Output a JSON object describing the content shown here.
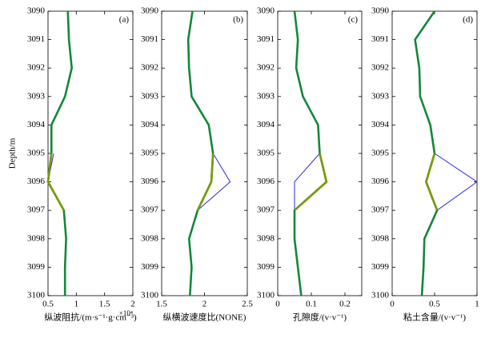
{
  "chart_data": [
    {
      "type": "line",
      "title": "(a)",
      "xlabel": "纵波阻抗/(m·s⁻¹·g·cm⁻³)",
      "x_exponent_label": "×10⁴",
      "ylabel": "Depth/m",
      "y": [
        3090,
        3091,
        3092,
        3093,
        3094,
        3095,
        3096,
        3097,
        3098,
        3099,
        3100
      ],
      "series": [
        {
          "color": "#13873a",
          "values": [
            0.85,
            0.87,
            0.92,
            0.8,
            0.56,
            0.56,
            0.5,
            0.78,
            0.82,
            0.8,
            0.8
          ]
        },
        {
          "color": "#2a2ad8",
          "values": [
            null,
            null,
            null,
            null,
            null,
            0.6,
            0.5,
            0.78,
            null,
            null,
            null
          ]
        },
        {
          "color": "#7a9a0c",
          "values": [
            null,
            null,
            null,
            null,
            null,
            0.56,
            0.5,
            0.78,
            null,
            null,
            null
          ]
        }
      ],
      "xlim": [
        0.5,
        2
      ],
      "xticks": [
        0.5,
        1,
        1.5,
        2
      ],
      "ylim": [
        3090,
        3100
      ],
      "yticks": [
        3090,
        3091,
        3092,
        3093,
        3094,
        3095,
        3096,
        3097,
        3098,
        3099,
        3100
      ],
      "y_inverted": true
    },
    {
      "type": "line",
      "title": "(b)",
      "xlabel": "纵横波速度比(NONE)",
      "y": [
        3090,
        3091,
        3092,
        3093,
        3094,
        3095,
        3096,
        3097,
        3098,
        3099,
        3100
      ],
      "series": [
        {
          "color": "#13873a",
          "values": [
            1.86,
            1.81,
            1.82,
            1.85,
            2.05,
            2.1,
            2.08,
            1.92,
            1.82,
            1.85,
            1.83
          ]
        },
        {
          "color": "#2a2ad8",
          "values": [
            null,
            null,
            null,
            null,
            null,
            2.1,
            2.3,
            1.92,
            null,
            null,
            null
          ]
        },
        {
          "color": "#7a9a0c",
          "values": [
            null,
            null,
            null,
            null,
            null,
            2.1,
            2.08,
            1.92,
            null,
            null,
            null
          ]
        }
      ],
      "xlim": [
        1.5,
        2.5
      ],
      "xticks": [
        1.5,
        2,
        2.5
      ],
      "ylim": [
        3090,
        3100
      ],
      "yticks": [
        3090,
        3091,
        3092,
        3093,
        3094,
        3095,
        3096,
        3097,
        3098,
        3099,
        3100
      ],
      "y_inverted": true
    },
    {
      "type": "line",
      "title": "(c)",
      "xlabel": "孔隙度/(v·v⁻¹)",
      "y": [
        3090,
        3091,
        3092,
        3093,
        3094,
        3095,
        3096,
        3097,
        3098,
        3099,
        3100
      ],
      "series": [
        {
          "color": "#13873a",
          "values": [
            0.05,
            0.06,
            0.055,
            0.075,
            0.12,
            0.125,
            0.145,
            0.05,
            0.05,
            0.06,
            0.07
          ]
        },
        {
          "color": "#2a2ad8",
          "values": [
            null,
            null,
            null,
            null,
            null,
            0.125,
            0.05,
            0.05,
            null,
            null,
            null
          ]
        },
        {
          "color": "#7a9a0c",
          "values": [
            null,
            null,
            null,
            null,
            null,
            0.125,
            0.145,
            0.05,
            null,
            null,
            null
          ]
        }
      ],
      "xlim": [
        0,
        0.25
      ],
      "xticks": [
        0,
        0.1,
        0.2
      ],
      "ylim": [
        3090,
        3100
      ],
      "yticks": [
        3090,
        3091,
        3092,
        3093,
        3094,
        3095,
        3096,
        3097,
        3098,
        3099,
        3100
      ],
      "y_inverted": true
    },
    {
      "type": "line",
      "title": "(d)",
      "xlabel": "粘土含量/(v·v⁻¹)",
      "y": [
        3090,
        3091,
        3092,
        3093,
        3094,
        3095,
        3096,
        3097,
        3098,
        3099,
        3100
      ],
      "series": [
        {
          "color": "#13873a",
          "values": [
            0.5,
            0.27,
            0.32,
            0.33,
            0.45,
            0.5,
            0.4,
            0.53,
            0.38,
            0.37,
            0.35
          ]
        },
        {
          "color": "#2a2ad8",
          "values": [
            null,
            null,
            null,
            null,
            null,
            0.5,
            1.0,
            0.53,
            null,
            null,
            null
          ]
        },
        {
          "color": "#7a9a0c",
          "values": [
            null,
            null,
            null,
            null,
            null,
            0.5,
            0.4,
            0.53,
            null,
            null,
            null
          ]
        }
      ],
      "xlim": [
        0,
        1
      ],
      "xticks": [
        0,
        0.5,
        1
      ],
      "ylim": [
        3090,
        3100
      ],
      "yticks": [
        3090,
        3091,
        3092,
        3093,
        3094,
        3095,
        3096,
        3097,
        3098,
        3099,
        3100
      ],
      "y_inverted": true
    }
  ]
}
